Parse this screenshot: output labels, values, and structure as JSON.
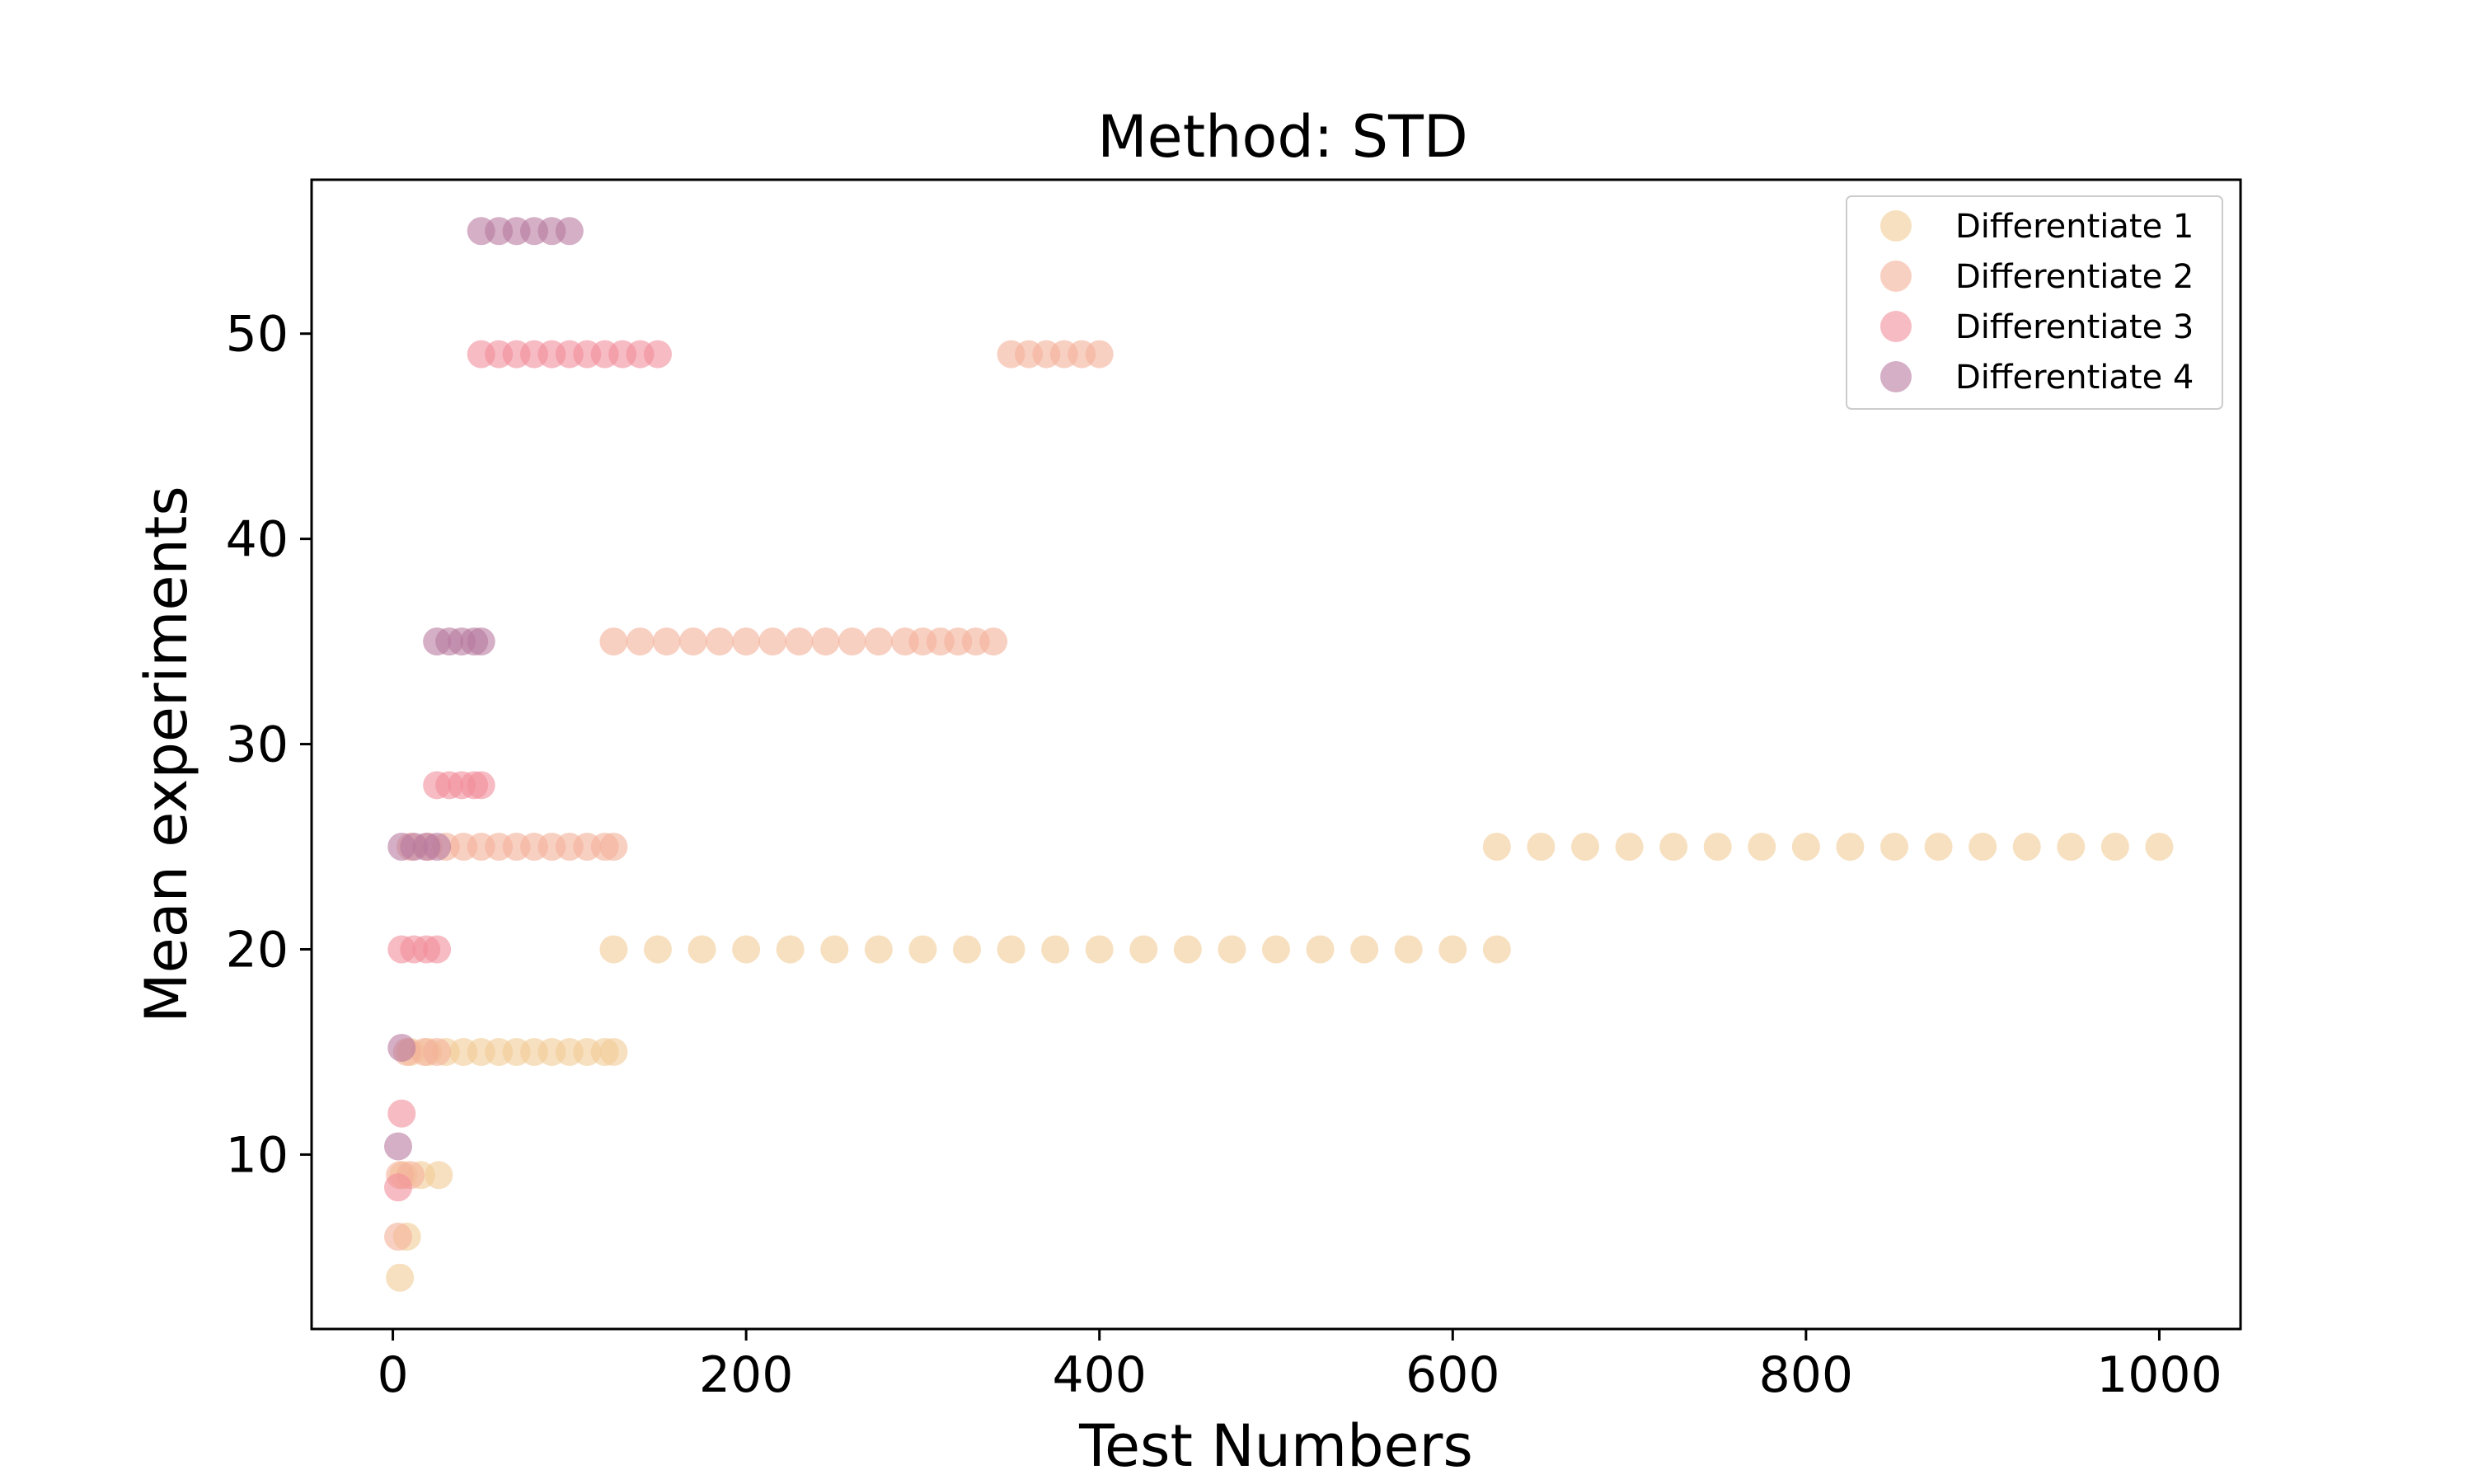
{
  "chart_data": {
    "type": "scatter",
    "title": "Method: STD",
    "xlabel": "Test Numbers",
    "ylabel": "Mean experiments",
    "xlim": [
      -46,
      1046
    ],
    "ylim": [
      1.5,
      57.5
    ],
    "xticks": [
      0,
      200,
      400,
      600,
      800,
      1000
    ],
    "yticks": [
      10,
      20,
      30,
      40,
      50
    ],
    "grid": false,
    "legend_position": "top-right",
    "marker_alpha": 0.6,
    "series": [
      {
        "name": "Differentiate 1",
        "color": "#f1cc96",
        "points": [
          {
            "x": 4,
            "y": 4
          },
          {
            "x": 8,
            "y": 6
          },
          {
            "x": 6,
            "y": 9
          },
          {
            "x": 16,
            "y": 9
          },
          {
            "x": 26,
            "y": 9
          },
          {
            "x": 10,
            "y": 15
          },
          {
            "x": 20,
            "y": 15
          },
          {
            "x": 30,
            "y": 15
          },
          {
            "x": 40,
            "y": 15
          },
          {
            "x": 50,
            "y": 15
          },
          {
            "x": 60,
            "y": 15
          },
          {
            "x": 70,
            "y": 15
          },
          {
            "x": 80,
            "y": 15
          },
          {
            "x": 90,
            "y": 15
          },
          {
            "x": 100,
            "y": 15
          },
          {
            "x": 110,
            "y": 15
          },
          {
            "x": 120,
            "y": 15
          },
          {
            "x": 125,
            "y": 15
          },
          {
            "x": 125,
            "y": 20
          },
          {
            "x": 150,
            "y": 20
          },
          {
            "x": 175,
            "y": 20
          },
          {
            "x": 200,
            "y": 20
          },
          {
            "x": 225,
            "y": 20
          },
          {
            "x": 250,
            "y": 20
          },
          {
            "x": 275,
            "y": 20
          },
          {
            "x": 300,
            "y": 20
          },
          {
            "x": 325,
            "y": 20
          },
          {
            "x": 350,
            "y": 20
          },
          {
            "x": 375,
            "y": 20
          },
          {
            "x": 400,
            "y": 20
          },
          {
            "x": 425,
            "y": 20
          },
          {
            "x": 450,
            "y": 20
          },
          {
            "x": 475,
            "y": 20
          },
          {
            "x": 500,
            "y": 20
          },
          {
            "x": 525,
            "y": 20
          },
          {
            "x": 550,
            "y": 20
          },
          {
            "x": 575,
            "y": 20
          },
          {
            "x": 600,
            "y": 20
          },
          {
            "x": 625,
            "y": 20
          },
          {
            "x": 625,
            "y": 25
          },
          {
            "x": 650,
            "y": 25
          },
          {
            "x": 675,
            "y": 25
          },
          {
            "x": 700,
            "y": 25
          },
          {
            "x": 725,
            "y": 25
          },
          {
            "x": 750,
            "y": 25
          },
          {
            "x": 775,
            "y": 25
          },
          {
            "x": 800,
            "y": 25
          },
          {
            "x": 825,
            "y": 25
          },
          {
            "x": 850,
            "y": 25
          },
          {
            "x": 875,
            "y": 25
          },
          {
            "x": 900,
            "y": 25
          },
          {
            "x": 925,
            "y": 25
          },
          {
            "x": 950,
            "y": 25
          },
          {
            "x": 975,
            "y": 25
          },
          {
            "x": 1000,
            "y": 25
          }
        ]
      },
      {
        "name": "Differentiate 2",
        "color": "#f4b09a",
        "points": [
          {
            "x": 3,
            "y": 6
          },
          {
            "x": 4,
            "y": 9
          },
          {
            "x": 10,
            "y": 9
          },
          {
            "x": 8,
            "y": 15
          },
          {
            "x": 18,
            "y": 15
          },
          {
            "x": 25,
            "y": 15
          },
          {
            "x": 10,
            "y": 25
          },
          {
            "x": 20,
            "y": 25
          },
          {
            "x": 30,
            "y": 25
          },
          {
            "x": 40,
            "y": 25
          },
          {
            "x": 50,
            "y": 25
          },
          {
            "x": 60,
            "y": 25
          },
          {
            "x": 70,
            "y": 25
          },
          {
            "x": 80,
            "y": 25
          },
          {
            "x": 90,
            "y": 25
          },
          {
            "x": 100,
            "y": 25
          },
          {
            "x": 110,
            "y": 25
          },
          {
            "x": 120,
            "y": 25
          },
          {
            "x": 125,
            "y": 25
          },
          {
            "x": 125,
            "y": 35
          },
          {
            "x": 140,
            "y": 35
          },
          {
            "x": 155,
            "y": 35
          },
          {
            "x": 170,
            "y": 35
          },
          {
            "x": 185,
            "y": 35
          },
          {
            "x": 200,
            "y": 35
          },
          {
            "x": 215,
            "y": 35
          },
          {
            "x": 230,
            "y": 35
          },
          {
            "x": 245,
            "y": 35
          },
          {
            "x": 260,
            "y": 35
          },
          {
            "x": 275,
            "y": 35
          },
          {
            "x": 290,
            "y": 35
          },
          {
            "x": 300,
            "y": 35
          },
          {
            "x": 310,
            "y": 35
          },
          {
            "x": 320,
            "y": 35
          },
          {
            "x": 330,
            "y": 35
          },
          {
            "x": 340,
            "y": 35
          },
          {
            "x": 350,
            "y": 49
          },
          {
            "x": 360,
            "y": 49
          },
          {
            "x": 370,
            "y": 49
          },
          {
            "x": 380,
            "y": 49
          },
          {
            "x": 390,
            "y": 49
          },
          {
            "x": 400,
            "y": 49
          }
        ]
      },
      {
        "name": "Differentiate 3",
        "color": "#f28e9b",
        "points": [
          {
            "x": 3,
            "y": 8.4
          },
          {
            "x": 5,
            "y": 12
          },
          {
            "x": 5,
            "y": 20
          },
          {
            "x": 12,
            "y": 20
          },
          {
            "x": 19,
            "y": 20
          },
          {
            "x": 25,
            "y": 20
          },
          {
            "x": 25,
            "y": 28
          },
          {
            "x": 32,
            "y": 28
          },
          {
            "x": 39,
            "y": 28
          },
          {
            "x": 46,
            "y": 28
          },
          {
            "x": 50,
            "y": 28
          },
          {
            "x": 50,
            "y": 49
          },
          {
            "x": 60,
            "y": 49
          },
          {
            "x": 70,
            "y": 49
          },
          {
            "x": 80,
            "y": 49
          },
          {
            "x": 90,
            "y": 49
          },
          {
            "x": 100,
            "y": 49
          },
          {
            "x": 110,
            "y": 49
          },
          {
            "x": 120,
            "y": 49
          },
          {
            "x": 130,
            "y": 49
          },
          {
            "x": 140,
            "y": 49
          },
          {
            "x": 150,
            "y": 49
          }
        ]
      },
      {
        "name": "Differentiate 4",
        "color": "#b77a9e",
        "points": [
          {
            "x": 3,
            "y": 10.4
          },
          {
            "x": 5,
            "y": 15.2
          },
          {
            "x": 5,
            "y": 25
          },
          {
            "x": 12,
            "y": 25
          },
          {
            "x": 19,
            "y": 25
          },
          {
            "x": 25,
            "y": 25
          },
          {
            "x": 25,
            "y": 35
          },
          {
            "x": 32,
            "y": 35
          },
          {
            "x": 39,
            "y": 35
          },
          {
            "x": 46,
            "y": 35
          },
          {
            "x": 50,
            "y": 35
          },
          {
            "x": 50,
            "y": 55
          },
          {
            "x": 60,
            "y": 55
          },
          {
            "x": 70,
            "y": 55
          },
          {
            "x": 80,
            "y": 55
          },
          {
            "x": 90,
            "y": 55
          },
          {
            "x": 100,
            "y": 55
          }
        ]
      }
    ]
  }
}
